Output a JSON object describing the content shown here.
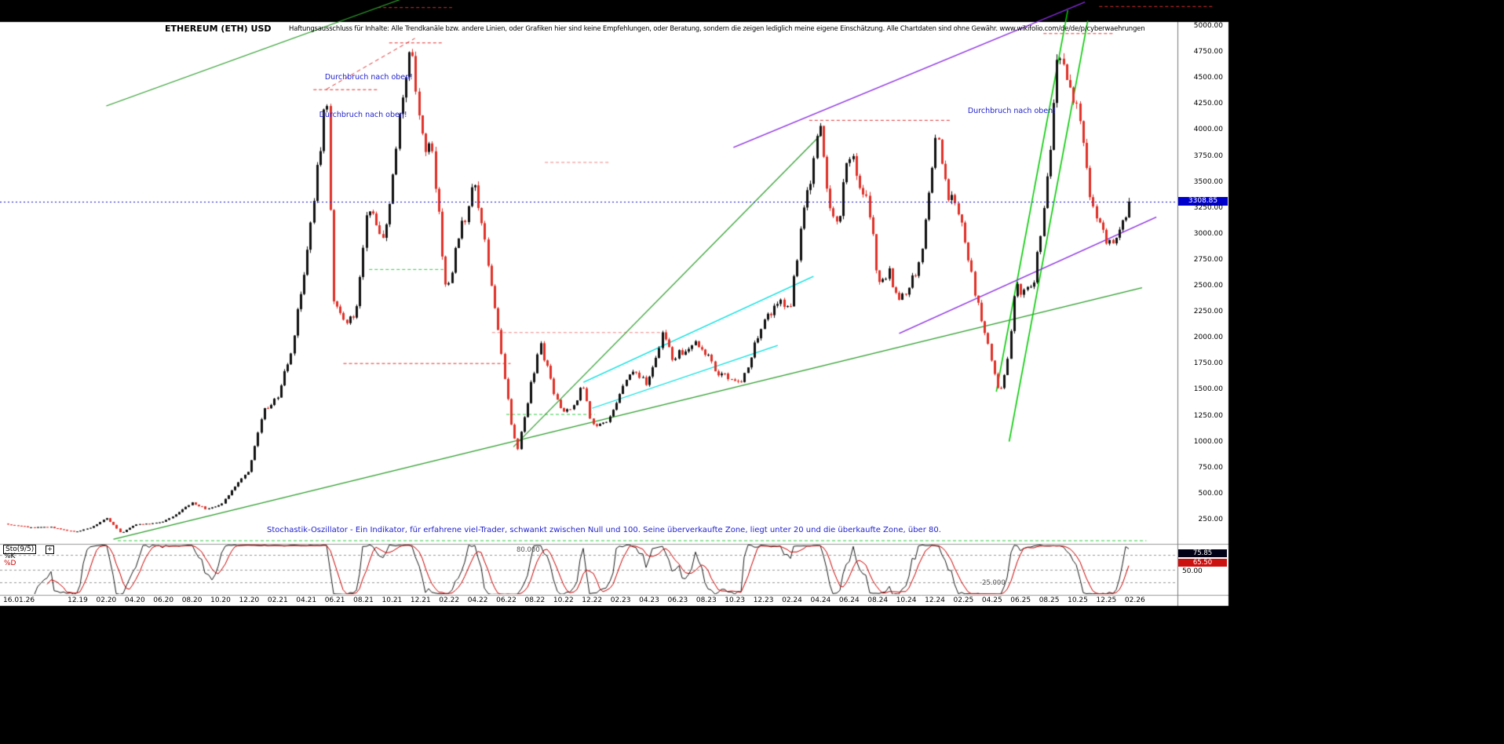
{
  "header": {
    "title": "ETHEREUM (ETH) USD",
    "disclaimer": "Haftungsausschluss für Inhalte: Alle Trendkanäle bzw. andere Linien, oder Grafiken hier sind keine Empfehlungen, oder Beratung, sondern die zeigen lediglich meine eigene Einschätzung. Alle Chartdaten sind ohne Gewähr. www.wikifolio.com/de/de/p/cyberwaehrungen"
  },
  "footer_note": "Stochastik-Oszillator - Ein Indikator, für erfahrene viel-Trader, schwankt zwischen Null und 100. Seine überverkaufte Zone, liegt unter 20 und die überkaufte Zone, über 80.",
  "price_axis": {
    "current_price": "3308.85",
    "ticks": [
      "5000.00",
      "4750.00",
      "4500.00",
      "4250.00",
      "4000.00",
      "3750.00",
      "3500.00",
      "3250.00",
      "3000.00",
      "2750.00",
      "2500.00",
      "2250.00",
      "2000.00",
      "1750.00",
      "1500.00",
      "1250.00",
      "1000.00",
      "750.00",
      "500.00",
      "250.00"
    ]
  },
  "x_axis": {
    "start_label": "16.01.26",
    "ticks": [
      "12.19",
      "02.20",
      "04.20",
      "06.20",
      "08.20",
      "10.20",
      "12.20",
      "02.21",
      "04.21",
      "06.21",
      "08.21",
      "10.21",
      "12.21",
      "02.22",
      "04.22",
      "06.22",
      "08.22",
      "10.22",
      "12.22",
      "02.23",
      "04.23",
      "06.23",
      "08.23",
      "10.23",
      "12.23",
      "02.24",
      "04.24",
      "06.24",
      "08.24",
      "10.24",
      "12.24",
      "02.25",
      "04.25",
      "06.25",
      "08.25",
      "10.25",
      "12.25",
      "02.26"
    ]
  },
  "oscillator": {
    "name": "Sto(9/5)",
    "expand_icon": "+",
    "k_label": "%K",
    "d_label": "%D",
    "k_value": "75.85",
    "d_value": "65.50",
    "mid_label": "50.00",
    "zone_high_label": "80.000",
    "zone_low_label": "25.000"
  },
  "chart_data": {
    "type": "candlestick",
    "symbol": "ETHEREUM (ETH) USD",
    "time_start": "2019-07",
    "time_end": "2026-02",
    "y_range": [
      0,
      5250
    ],
    "latest_price": 3308.85,
    "candle_up_color": "#111111",
    "candle_down_color": "#e03028",
    "current_price_line_color": "#1414cc",
    "annotation_color": "#2222cc",
    "monthly_close_anchors": [
      [
        0,
        210
      ],
      [
        1,
        185
      ],
      [
        2,
        172
      ],
      [
        3,
        180
      ],
      [
        4,
        150
      ],
      [
        5,
        132
      ],
      [
        6,
        180
      ],
      [
        7,
        265
      ],
      [
        8,
        118
      ],
      [
        9,
        205
      ],
      [
        10,
        212
      ],
      [
        11,
        228
      ],
      [
        12,
        318
      ],
      [
        13,
        408
      ],
      [
        14,
        352
      ],
      [
        15,
        388
      ],
      [
        16,
        575
      ],
      [
        17,
        735
      ],
      [
        18,
        1310
      ],
      [
        19,
        1420
      ],
      [
        20,
        1920
      ],
      [
        21,
        2770
      ],
      [
        22.4,
        4340
      ],
      [
        22.9,
        2350
      ],
      [
        23.5,
        2150
      ],
      [
        24.5,
        2250
      ],
      [
        25.3,
        3300
      ],
      [
        26.5,
        2950
      ],
      [
        27.5,
        4150
      ],
      [
        28.3,
        4830
      ],
      [
        29,
        3950
      ],
      [
        29.9,
        3700
      ],
      [
        30.8,
        2350
      ],
      [
        31.5,
        2900
      ],
      [
        32.7,
        3450
      ],
      [
        33.5,
        2950
      ],
      [
        34.5,
        1950
      ],
      [
        35.4,
        1100
      ],
      [
        35.8,
        930
      ],
      [
        36.6,
        1480
      ],
      [
        37.4,
        1940
      ],
      [
        38.2,
        1530
      ],
      [
        38.9,
        1290
      ],
      [
        39.7,
        1330
      ],
      [
        40.3,
        1570
      ],
      [
        40.9,
        1180
      ],
      [
        41.6,
        1160
      ],
      [
        42.2,
        1210
      ],
      [
        43.2,
        1580
      ],
      [
        44,
        1650
      ],
      [
        44.8,
        1570
      ],
      [
        45.5,
        1850
      ],
      [
        46,
        2090
      ],
      [
        46.6,
        1800
      ],
      [
        47.4,
        1870
      ],
      [
        48.2,
        1930
      ],
      [
        49,
        1860
      ],
      [
        49.8,
        1640
      ],
      [
        50.6,
        1620
      ],
      [
        51.4,
        1550
      ],
      [
        52,
        1790
      ],
      [
        52.8,
        2080
      ],
      [
        53.5,
        2250
      ],
      [
        54.2,
        2380
      ],
      [
        54.8,
        2230
      ],
      [
        55.5,
        2950
      ],
      [
        56.2,
        3480
      ],
      [
        56.9,
        4030
      ],
      [
        57.6,
        3250
      ],
      [
        58.3,
        3100
      ],
      [
        58.9,
        3850
      ],
      [
        59.6,
        3500
      ],
      [
        60.3,
        3360
      ],
      [
        61,
        2500
      ],
      [
        61.7,
        2650
      ],
      [
        62.4,
        2350
      ],
      [
        63.2,
        2500
      ],
      [
        64,
        2750
      ],
      [
        64.6,
        3500
      ],
      [
        65.1,
        4000
      ],
      [
        65.8,
        3400
      ],
      [
        66.4,
        3300
      ],
      [
        67,
        3050
      ],
      [
        67.6,
        2550
      ],
      [
        68.3,
        2100
      ],
      [
        69,
        1780
      ],
      [
        69.5,
        1430
      ],
      [
        70.1,
        1800
      ],
      [
        70.6,
        2530
      ],
      [
        71.3,
        2420
      ],
      [
        71.9,
        2550
      ],
      [
        72.5,
        3100
      ],
      [
        73,
        3750
      ],
      [
        73.6,
        4780
      ],
      [
        74.1,
        4480
      ],
      [
        74.7,
        4300
      ],
      [
        75.3,
        4050
      ],
      [
        75.9,
        3350
      ],
      [
        76.4,
        3100
      ],
      [
        76.9,
        2950
      ],
      [
        77.5,
        2950
      ],
      [
        78.2,
        3150
      ],
      [
        78.8,
        3308.85
      ]
    ],
    "trend_lines": [
      {
        "t1": 7.5,
        "p1": 60,
        "t2": 79.5,
        "p2": 2480,
        "color": "#2e9e2e",
        "width": 1.2,
        "dash": false
      },
      {
        "t1": 35.5,
        "p1": 950,
        "t2": 57,
        "p2": 3950,
        "color": "#2e9e2e",
        "width": 1.2,
        "dash": false
      },
      {
        "t1": 7,
        "p1": 4230,
        "t2": 28.5,
        "p2": 5300,
        "color": "#2e9e2e",
        "width": 1.2,
        "dash": false
      },
      {
        "t1": 69.3,
        "p1": 1480,
        "t2": 74.3,
        "p2": 5150,
        "color": "#00cc00",
        "width": 1.6,
        "dash": false
      },
      {
        "t1": 70.2,
        "p1": 1000,
        "t2": 75.7,
        "p2": 5050,
        "color": "#00cc00",
        "width": 1.6,
        "dash": false
      },
      {
        "t1": 50.9,
        "p1": 3830,
        "t2": 75.5,
        "p2": 5230,
        "color": "#8a2be2",
        "width": 1.4,
        "dash": false
      },
      {
        "t1": 62.5,
        "p1": 2040,
        "t2": 80.5,
        "p2": 3160,
        "color": "#8a2be2",
        "width": 1.4,
        "dash": false
      },
      {
        "t1": 40.4,
        "p1": 1570,
        "t2": 56.5,
        "p2": 2590,
        "color": "#00e0e0",
        "width": 1.4,
        "dash": false
      },
      {
        "t1": 41,
        "p1": 1320,
        "t2": 54,
        "p2": 1925,
        "color": "#00e0e0",
        "width": 1.2,
        "dash": false
      },
      {
        "t1": 22.4,
        "p1": 4390,
        "t2": 28.6,
        "p2": 4880,
        "color": "#e03131",
        "width": 1,
        "dash": true
      }
    ],
    "levels": [
      {
        "p": 4390,
        "t1": 21.5,
        "t2": 26,
        "color": "#e03131"
      },
      {
        "p": 4840,
        "t1": 26.8,
        "t2": 30.6,
        "color": "#e03131"
      },
      {
        "p": 5180,
        "t1": 26,
        "t2": 31.2,
        "color": "#e03131"
      },
      {
        "p": 3690,
        "t1": 37.7,
        "t2": 42.2,
        "color": "#ef8585"
      },
      {
        "p": 2053,
        "t1": 34,
        "t2": 46,
        "color": "#ef8585"
      },
      {
        "p": 1755,
        "t1": 23.6,
        "t2": 35.3,
        "color": "#e03131"
      },
      {
        "p": 4095,
        "t1": 56.2,
        "t2": 66.1,
        "color": "#e03131"
      },
      {
        "p": 4930,
        "t1": 72.6,
        "t2": 77.6,
        "color": "#e03131"
      },
      {
        "p": 5190,
        "t1": 76.5,
        "t2": 84.5,
        "color": "#e03131"
      },
      {
        "p": 2660,
        "t1": 25.4,
        "t2": 30.6,
        "color": "#2ecc40"
      },
      {
        "p": 1265,
        "t1": 35,
        "t2": 41.2,
        "color": "#2ecc40"
      },
      {
        "p": 50,
        "t1": 7.8,
        "t2": 79.8,
        "color": "#2ecc40"
      }
    ],
    "annotations": [
      {
        "text": "Durchbruch nach oben!",
        "t": 22.3,
        "p": 4500
      },
      {
        "text": "Durchbruch nach oben!",
        "t": 21.9,
        "p": 4140
      },
      {
        "text": "Durchbruch nach oben!",
        "t": 67.3,
        "p": 4175
      }
    ],
    "stochastic": {
      "indicator": "Sto(9/5)",
      "k_period": 9,
      "d_period": 5,
      "k": 75.85,
      "d": 65.5,
      "overbought": 80,
      "oversold": 20,
      "grid_levels": [
        80,
        50,
        25
      ],
      "k_color": "#000000",
      "d_color": "#cc0000"
    }
  }
}
